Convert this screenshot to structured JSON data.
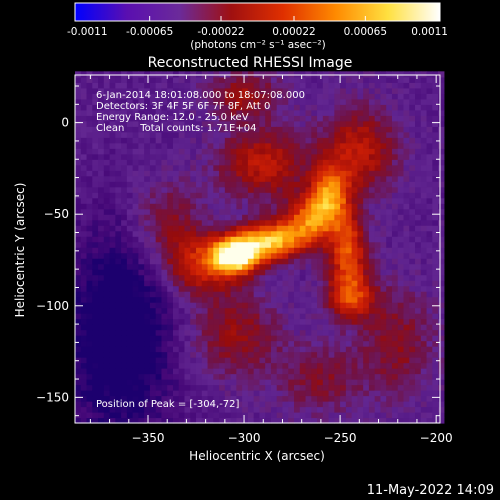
{
  "chart_data": {
    "type": "heatmap",
    "title": "Reconstructed RHESSI Image",
    "xlabel": "Heliocentric X (arcsec)",
    "ylabel": "Heliocentric Y (arcsec)",
    "xlim": [
      -388,
      -198
    ],
    "ylim": [
      -164,
      26
    ],
    "xticks": [
      -350,
      -300,
      -250,
      -200
    ],
    "yticks": [
      0,
      -50,
      -100,
      -150
    ],
    "colorbar": {
      "min": -0.0011,
      "max": 0.0011,
      "tick_values": [
        -0.0011,
        -0.00065,
        -0.00022,
        0.00022,
        0.00065,
        0.0011
      ],
      "tick_labels": [
        "-0.0011",
        "-0.00065",
        "-0.00022",
        "0.00022",
        "0.00065",
        "0.0011"
      ],
      "units_label": "(photons cm⁻² s⁻¹ asec⁻²)",
      "colors": [
        "#0000ff",
        "#5a0fb0",
        "#6b2a9a",
        "#a01010",
        "#e03000",
        "#ff8a00",
        "#ffe040",
        "#ffffff"
      ]
    },
    "annotations": {
      "time_range": "6-Jan-2014 18:01:08.000 to 18:07:08.000",
      "detectors": "Detectors: 3F 4F 5F 6F 7F 8F, Att 0",
      "energy_range": "Energy Range: 12.0 - 25.0 keV",
      "method_counts": "Clean     Total counts: 1.71E+04",
      "peak": "Position of Peak = [-304,-72]"
    },
    "peak": [
      -304,
      -72
    ],
    "emission_sources": [
      {
        "x": -304,
        "y": -72,
        "sx": 9,
        "sy": 7,
        "amp": 1.0
      },
      {
        "x": -285,
        "y": -64,
        "sx": 12,
        "sy": 7,
        "amp": 0.8
      },
      {
        "x": -265,
        "y": -52,
        "sx": 9,
        "sy": 9,
        "amp": 0.62
      },
      {
        "x": -255,
        "y": -38,
        "sx": 7,
        "sy": 11,
        "amp": 0.58
      },
      {
        "x": -246,
        "y": -70,
        "sx": 7,
        "sy": 15,
        "amp": 0.55
      },
      {
        "x": -244,
        "y": -95,
        "sx": 9,
        "sy": 9,
        "amp": 0.45
      },
      {
        "x": -322,
        "y": -78,
        "sx": 13,
        "sy": 11,
        "amp": 0.45
      },
      {
        "x": -290,
        "y": -22,
        "sx": 16,
        "sy": 13,
        "amp": 0.4
      },
      {
        "x": -240,
        "y": -15,
        "sx": 13,
        "sy": 16,
        "amp": 0.4
      },
      {
        "x": -305,
        "y": -115,
        "sx": 16,
        "sy": 16,
        "amp": 0.28
      },
      {
        "x": -340,
        "y": -55,
        "sx": 13,
        "sy": 16,
        "amp": 0.25
      },
      {
        "x": -220,
        "y": -120,
        "sx": 13,
        "sy": 20,
        "amp": 0.25
      },
      {
        "x": -260,
        "y": -140,
        "sx": 16,
        "sy": 13,
        "amp": 0.22
      },
      {
        "x": -300,
        "y": 15,
        "sx": 13,
        "sy": 9,
        "amp": 0.3
      }
    ],
    "negative_region": {
      "x": -365,
      "y": -115,
      "sx": 20,
      "sy": 40,
      "amp": -0.35
    }
  },
  "footer": {
    "date": "11-May-2022 14:09"
  }
}
